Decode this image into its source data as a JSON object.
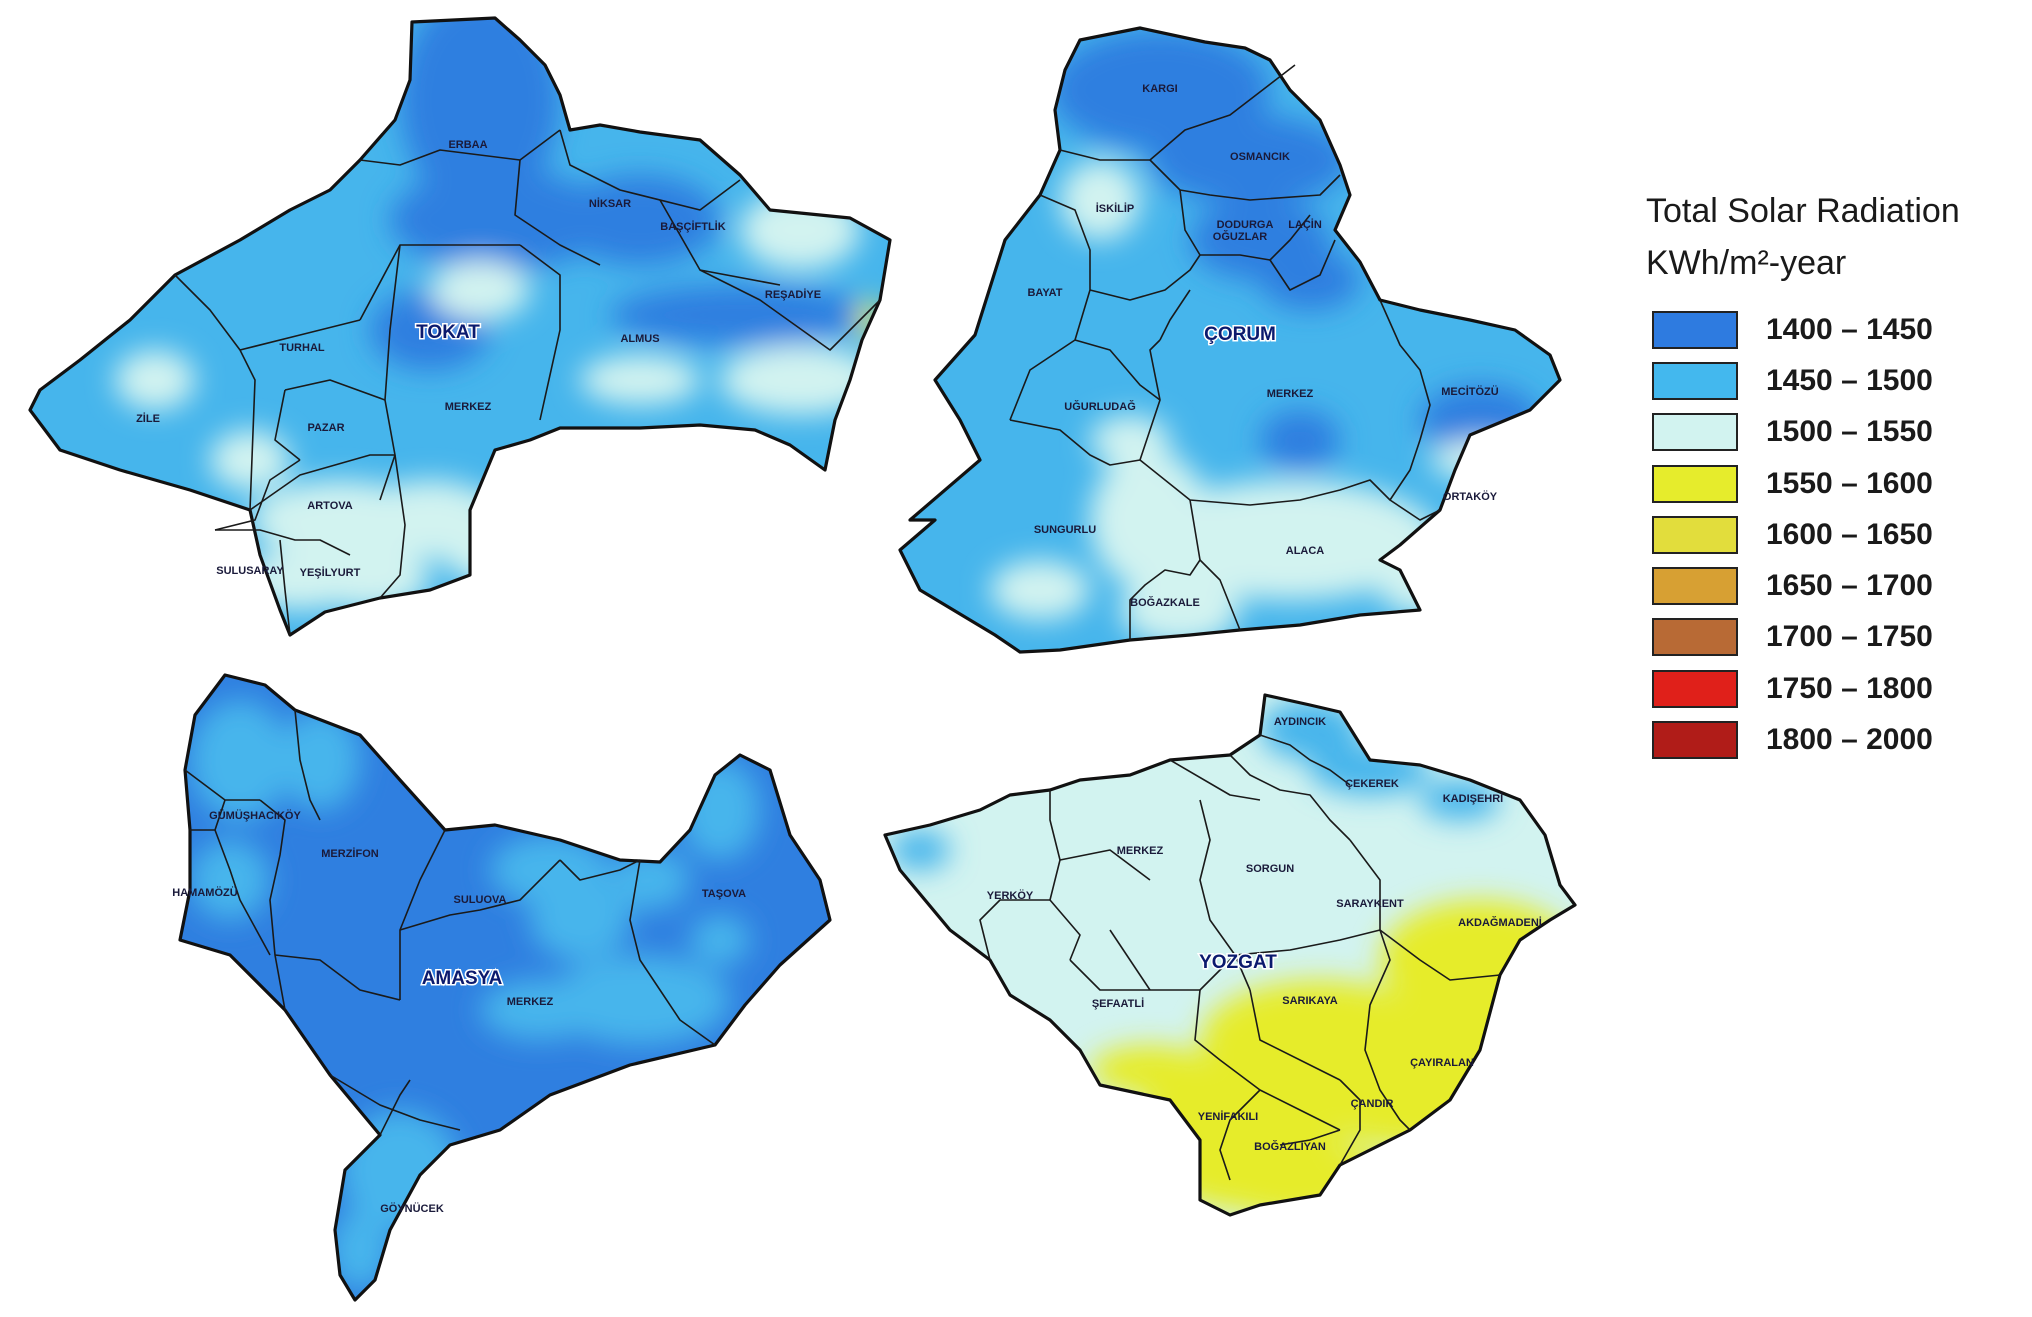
{
  "legend": {
    "title": "Total Solar Radiation",
    "unit": "KWh/m²-year",
    "classes": [
      {
        "range": "1400 – 1450",
        "color": "#2e7be0"
      },
      {
        "range": "1450 – 1500",
        "color": "#43b8ee"
      },
      {
        "range": "1500 – 1550",
        "color": "#d2f3f0"
      },
      {
        "range": "1550 – 1600",
        "color": "#e6ec2c"
      },
      {
        "range": "1600 – 1650",
        "color": "#e2dd3c"
      },
      {
        "range": "1650 – 1700",
        "color": "#d7a033"
      },
      {
        "range": "1700 – 1750",
        "color": "#b86a35"
      },
      {
        "range": "1750 – 1800",
        "color": "#e0201a"
      },
      {
        "range": "1800 – 2000",
        "color": "#b01c18"
      }
    ]
  },
  "provinces": {
    "tokat": {
      "name": "TOKAT",
      "districts": [
        "ERBAA",
        "NİKSAR",
        "BAŞÇİFTLİK",
        "REŞADİYE",
        "TURHAL",
        "ZİLE",
        "PAZAR",
        "MERKEZ",
        "ALMUS",
        "ARTOVA",
        "SULUSARAY",
        "YEŞİLYURT"
      ]
    },
    "corum": {
      "name": "ÇORUM",
      "districts": [
        "KARGI",
        "OSMANCIK",
        "İSKİLİP",
        "DODURGA",
        "OĞUZLAR",
        "LAÇİN",
        "BAYAT",
        "UĞURLUDAĞ",
        "MERKEZ",
        "MECİTÖZÜ",
        "ORTAKÖY",
        "SUNGURLU",
        "ALACA",
        "BOĞAZKALE"
      ]
    },
    "amasya": {
      "name": "AMASYA",
      "districts": [
        "GÜMÜŞHACIKÖY",
        "HAMAMÖZÜ",
        "MERZİFON",
        "SULUOVA",
        "TAŞOVA",
        "MERKEZ",
        "GÖYNÜCEK"
      ]
    },
    "yozgat": {
      "name": "YOZGAT",
      "districts": [
        "AYDINCIK",
        "ÇEKEREK",
        "KADIŞEHRİ",
        "MERKEZ",
        "SORGUN",
        "YERKÖY",
        "SARAYKENT",
        "AKDAĞMADENİ",
        "ŞEFAATLİ",
        "SARIKAYA",
        "ÇAYIRALAN",
        "ÇANDIR",
        "YENİFAKILI",
        "BOĞAZLIYAN"
      ]
    }
  }
}
